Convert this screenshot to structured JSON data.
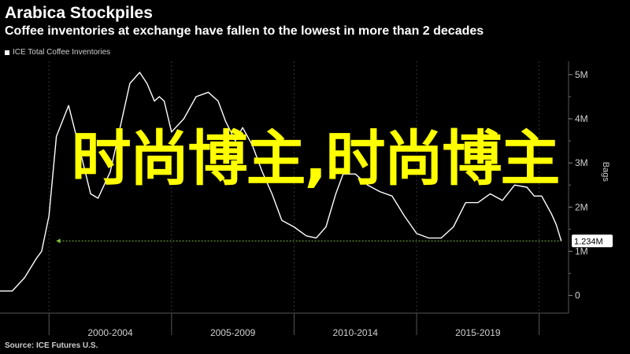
{
  "header": {
    "title": "Arabica Stockpiles",
    "subtitle": "Coffee inventories at exchange have fallen to the lowest in more than 2 decades"
  },
  "legend": {
    "label": "ICE Total Coffee Inventories"
  },
  "source": "Source: ICE Futures U.S.",
  "overlay_text": "时尚博主,时尚博主",
  "colors": {
    "background": "#000000",
    "line": "#ffffff",
    "reference_line": "#7fbf3f",
    "overlay": "#ffff00",
    "grid": "#333333"
  },
  "chart_data": {
    "type": "line",
    "title": "Arabica Stockpiles",
    "subtitle": "Coffee inventories at exchange have fallen to the lowest in more than 2 decades",
    "ylabel": "Bags",
    "y_axis_position": "right",
    "ylim": [
      -0.4,
      5.3
    ],
    "y_ticks": [
      0,
      1,
      2,
      3,
      4,
      5
    ],
    "y_tick_labels": [
      "0",
      "1M",
      "2M",
      "3M",
      "4M",
      "5M"
    ],
    "xlim": [
      1998.0,
      2021.2
    ],
    "x_tick_labels": [
      "2000-2004",
      "2005-2009",
      "2010-2014",
      "2015-2019"
    ],
    "x_tick_ranges": [
      [
        2000,
        2005
      ],
      [
        2005,
        2010
      ],
      [
        2010,
        2015
      ],
      [
        2015,
        2020
      ]
    ],
    "grid": "vertical dashed",
    "legend": "top-left",
    "series": [
      {
        "name": "ICE Total Coffee Inventories",
        "x": [
          1998.0,
          1998.5,
          1999.0,
          1999.5,
          1999.7,
          2000.0,
          2000.3,
          2000.8,
          2001.3,
          2001.7,
          2002.0,
          2002.5,
          2002.9,
          2003.3,
          2003.7,
          2004.0,
          2004.3,
          2004.5,
          2004.7,
          2005.0,
          2005.5,
          2006.0,
          2006.5,
          2006.9,
          2007.2,
          2007.6,
          2007.9,
          2008.3,
          2008.7,
          2009.1,
          2009.5,
          2010.0,
          2010.5,
          2010.9,
          2011.3,
          2011.7,
          2012.0,
          2012.5,
          2013.0,
          2013.5,
          2014.0,
          2014.5,
          2015.0,
          2015.5,
          2016.0,
          2016.5,
          2017.0,
          2017.5,
          2018.0,
          2018.5,
          2019.0,
          2019.5,
          2019.8,
          2020.1,
          2020.3,
          2020.5,
          2020.7,
          2020.9
        ],
        "values": [
          0.1,
          0.1,
          0.4,
          0.85,
          1.0,
          1.8,
          3.6,
          4.3,
          3.2,
          2.3,
          2.2,
          2.8,
          3.8,
          4.8,
          5.05,
          4.8,
          4.4,
          4.5,
          4.4,
          3.7,
          4.0,
          4.5,
          4.6,
          4.4,
          3.95,
          3.5,
          3.8,
          3.4,
          2.8,
          2.3,
          1.7,
          1.55,
          1.35,
          1.3,
          1.55,
          2.3,
          2.75,
          2.75,
          2.5,
          2.35,
          2.25,
          1.8,
          1.4,
          1.3,
          1.3,
          1.55,
          2.1,
          2.1,
          2.3,
          2.15,
          2.5,
          2.45,
          2.25,
          2.25,
          2.05,
          1.85,
          1.6,
          1.234
        ]
      }
    ],
    "reference_line": {
      "value": 1.234,
      "label": "1.234M"
    },
    "annotations": [
      "1.234M"
    ]
  }
}
